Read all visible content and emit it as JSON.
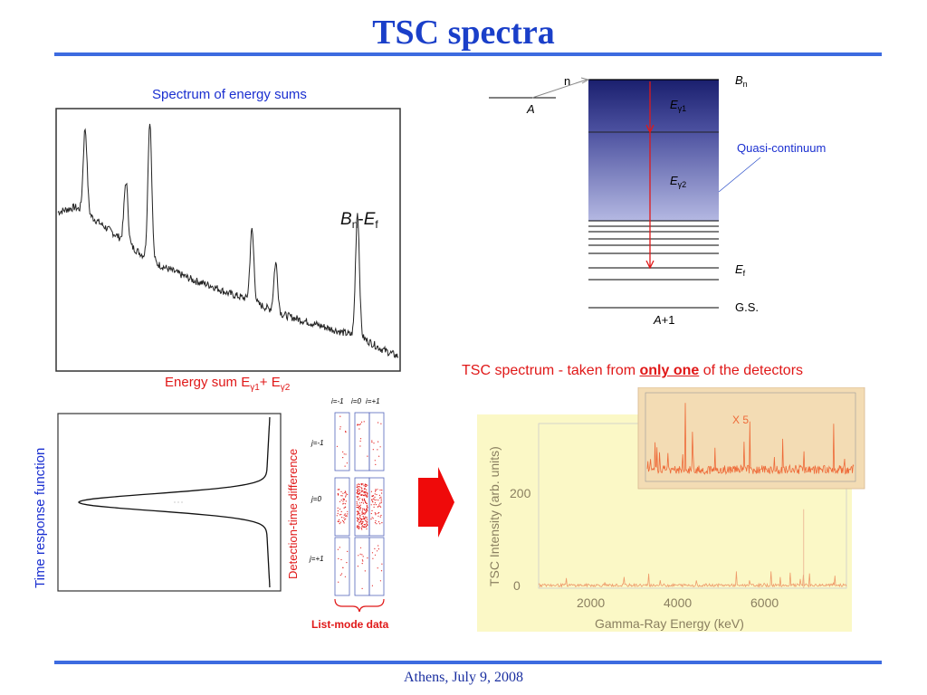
{
  "title": "TSC spectra",
  "footer": "Athens, July 9, 2008",
  "energy_sum_panel": {
    "caption": "Spectrum of energy sums",
    "peak_label_B": "B",
    "peak_label_B_sub": "n",
    "peak_label_dash": "-",
    "peak_label_E": "E",
    "peak_label_E_sub": "f",
    "xaxis_label_prefix": "Energy sum E",
    "xaxis_label_sub1": "γ1",
    "xaxis_label_plus": "+ E",
    "xaxis_label_sub2": "γ2"
  },
  "level_scheme": {
    "n_label": "n",
    "A_label": "A",
    "Bn_label": "B",
    "Bn_sub": "n",
    "Eg1_label": "E",
    "Eg1_sub": "γ1",
    "Eg2_label": "E",
    "Eg2_sub": "γ2",
    "quasi_label": "Quasi-continuum",
    "Ef_label": "E",
    "Ef_sub": "f",
    "gs_label": "G.S.",
    "A1_label": "A",
    "A1_suffix": "+1"
  },
  "time_response_panel": {
    "ylabel_left": "Time response function",
    "ylabel_right": "Detection-time difference"
  },
  "list_mode": {
    "i_labels": [
      "i=-1",
      "i=0",
      "i=+1"
    ],
    "j_labels": [
      "j=-1",
      "j=0",
      "j=+1"
    ],
    "caption": "List-mode data"
  },
  "tsc_panel": {
    "heading_pre": "TSC spectrum - taken from ",
    "heading_emph": "only one",
    "heading_post": " of the detectors",
    "inset_label": "X 5",
    "ylabel": "TSC Intensity (arb. units)",
    "xlabel": "Gamma-Ray Energy (keV)",
    "yticks": [
      "0",
      "200"
    ],
    "xticks": [
      "2000",
      "4000",
      "6000"
    ]
  },
  "chart_data": [
    {
      "type": "line",
      "title": "Spectrum of energy sums",
      "xlabel": "Energy sum Eγ1+ Eγ2",
      "ylabel": "",
      "x": [
        0,
        0.05,
        0.1,
        0.12,
        0.15,
        0.2,
        0.25,
        0.3,
        0.35,
        0.4,
        0.45,
        0.5,
        0.55,
        0.6,
        0.65,
        0.7,
        0.75,
        0.8,
        0.85,
        0.9,
        0.95,
        1.0
      ],
      "y": [
        0.62,
        0.64,
        0.6,
        0.58,
        0.55,
        0.5,
        0.45,
        0.41,
        0.38,
        0.35,
        0.33,
        0.3,
        0.28,
        0.25,
        0.22,
        0.2,
        0.18,
        0.16,
        0.14,
        0.12,
        0.08,
        0.05
      ],
      "peaks": [
        {
          "x": 0.08,
          "height": 0.95
        },
        {
          "x": 0.2,
          "height": 0.74
        },
        {
          "x": 0.27,
          "height": 0.98
        },
        {
          "x": 0.57,
          "height": 0.55
        },
        {
          "x": 0.64,
          "height": 0.42
        },
        {
          "x": 0.88,
          "height": 0.62,
          "label": "Bn-Ef"
        }
      ]
    },
    {
      "type": "line",
      "title": "",
      "ylabel": "Time response function",
      "xlabel": "",
      "curve": "inverted Gaussian peak",
      "center": 0.5,
      "width": 0.07
    },
    {
      "type": "line",
      "title": "TSC spectrum - taken from only one of the detectors",
      "xlabel": "Gamma-Ray Energy (keV)",
      "ylabel": "TSC Intensity (arb. units)",
      "xlim": [
        600,
        7800
      ],
      "ylim": [
        0,
        330
      ],
      "x": [
        700,
        1200,
        1500,
        2000,
        2500,
        3000,
        3500,
        4000,
        4500,
        5000,
        5500,
        6000,
        6500,
        6800,
        7000,
        7500,
        7700
      ],
      "y": [
        5,
        4,
        8,
        6,
        10,
        7,
        6,
        8,
        9,
        6,
        7,
        5,
        8,
        160,
        6,
        4,
        3
      ],
      "inset_scale": "X 5"
    }
  ],
  "colors": {
    "title_blue": "#1a3fc9",
    "rule_blue": "#3d6be0",
    "red": "#e01818",
    "level_dark": "#1a1f6e",
    "level_light": "#aab0dc",
    "tsc_bg": "#fbf8c6",
    "inset_bg": "#f3dcb4"
  }
}
